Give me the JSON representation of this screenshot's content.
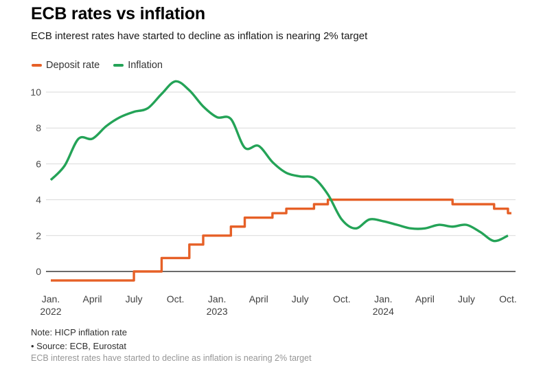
{
  "header": {
    "title": "ECB rates vs inflation",
    "subtitle": "ECB interest rates have started to decline as inflation is nearing 2% target"
  },
  "legend": {
    "items": [
      {
        "label": "Deposit rate",
        "color": "#e66027"
      },
      {
        "label": "Inflation",
        "color": "#24a357"
      }
    ]
  },
  "footer": {
    "note": "Note: HICP inflation rate",
    "source": "• Source: ECB, Eurostat",
    "caption": "ECB interest rates have started to decline as inflation is nearing 2% target"
  },
  "chart_data": {
    "type": "line",
    "title": "ECB rates vs inflation",
    "subtitle": "ECB interest rates have started to decline as inflation is nearing 2% target",
    "xlabel": "",
    "ylabel": "",
    "grid": "horizontal",
    "legend_position": "top-left",
    "ylim": [
      -0.9,
      11.2
    ],
    "yticks": [
      0,
      2,
      4,
      6,
      8,
      10
    ],
    "zero_line": 0,
    "x": [
      "2022-01",
      "2022-02",
      "2022-03",
      "2022-04",
      "2022-05",
      "2022-06",
      "2022-07",
      "2022-08",
      "2022-09",
      "2022-10",
      "2022-11",
      "2022-12",
      "2023-01",
      "2023-02",
      "2023-03",
      "2023-04",
      "2023-05",
      "2023-06",
      "2023-07",
      "2023-08",
      "2023-09",
      "2023-10",
      "2023-11",
      "2023-12",
      "2024-01",
      "2024-02",
      "2024-03",
      "2024-04",
      "2024-05",
      "2024-06",
      "2024-07",
      "2024-08",
      "2024-09",
      "2024-10"
    ],
    "x_ticks": [
      {
        "label": "Jan.",
        "sublabel": "2022",
        "month_index": 0
      },
      {
        "label": "April",
        "month_index": 3
      },
      {
        "label": "July",
        "month_index": 6
      },
      {
        "label": "Oct.",
        "month_index": 9
      },
      {
        "label": "Jan.",
        "sublabel": "2023",
        "month_index": 12
      },
      {
        "label": "April",
        "month_index": 15
      },
      {
        "label": "July",
        "month_index": 18
      },
      {
        "label": "Oct.",
        "month_index": 21
      },
      {
        "label": "Jan.",
        "sublabel": "2024",
        "month_index": 24
      },
      {
        "label": "April",
        "month_index": 27
      },
      {
        "label": "July",
        "month_index": 30
      },
      {
        "label": "Oct.",
        "month_index": 33
      }
    ],
    "series": [
      {
        "name": "Deposit rate",
        "color": "#e66027",
        "style": "step-after",
        "values": [
          -0.5,
          -0.5,
          -0.5,
          -0.5,
          -0.5,
          -0.5,
          0,
          0,
          0.75,
          0.75,
          1.5,
          2,
          2,
          2.5,
          3,
          3,
          3.25,
          3.5,
          3.5,
          3.75,
          4,
          4,
          4,
          4,
          4,
          4,
          4,
          4,
          4,
          3.75,
          3.75,
          3.75,
          3.5,
          3.25
        ]
      },
      {
        "name": "Inflation",
        "color": "#24a357",
        "style": "smooth",
        "values": [
          5.1,
          5.9,
          7.4,
          7.4,
          8.1,
          8.6,
          8.9,
          9.1,
          9.9,
          10.6,
          10.1,
          9.2,
          8.6,
          8.5,
          6.9,
          7.0,
          6.1,
          5.5,
          5.3,
          5.2,
          4.3,
          2.9,
          2.4,
          2.9,
          2.8,
          2.6,
          2.4,
          2.4,
          2.6,
          2.5,
          2.6,
          2.2,
          1.7,
          2.0
        ]
      }
    ]
  }
}
